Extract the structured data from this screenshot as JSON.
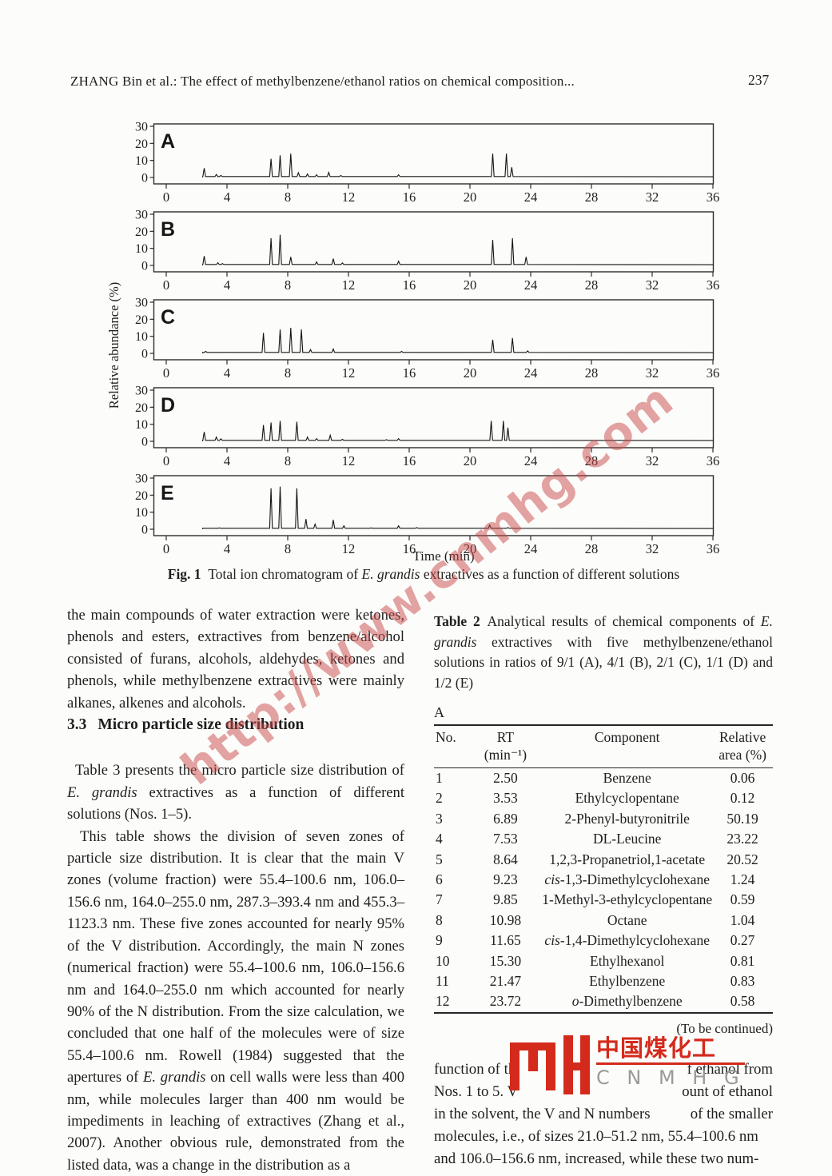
{
  "header": {
    "running_title": "ZHANG Bin et al.: The effect of methylbenzene/ethanol ratios on chemical composition...",
    "page_number": "237"
  },
  "chart_data": {
    "type": "line",
    "subtype": "total ion chromatogram, 5 stacked panels",
    "xlabel": "Time (min)",
    "ylabel": "Relative abundance (%)",
    "xlim": [
      0,
      36
    ],
    "ylim": [
      0,
      30
    ],
    "x_ticks": [
      0,
      4,
      8,
      12,
      16,
      20,
      24,
      28,
      32,
      36
    ],
    "y_ticks": [
      0,
      10,
      20,
      30
    ],
    "grid": false,
    "panels": [
      {
        "label": "A",
        "peaks": [
          [
            2.5,
            5.5
          ],
          [
            3.3,
            1.8
          ],
          [
            3.6,
            1.2
          ],
          [
            6.9,
            11
          ],
          [
            7.5,
            13
          ],
          [
            8.2,
            14
          ],
          [
            8.7,
            2.8
          ],
          [
            9.3,
            2
          ],
          [
            9.9,
            1.6
          ],
          [
            10.7,
            3
          ],
          [
            11.5,
            1.2
          ],
          [
            15.3,
            1.6
          ],
          [
            21.5,
            14
          ],
          [
            22.4,
            14
          ],
          [
            22.75,
            6
          ]
        ]
      },
      {
        "label": "B",
        "peaks": [
          [
            2.5,
            5.5
          ],
          [
            3.4,
            1.6
          ],
          [
            3.7,
            1.1
          ],
          [
            6.9,
            16
          ],
          [
            7.5,
            18
          ],
          [
            8.2,
            5
          ],
          [
            9.9,
            2
          ],
          [
            11.0,
            4
          ],
          [
            11.6,
            1.5
          ],
          [
            15.3,
            2.5
          ],
          [
            21.5,
            15
          ],
          [
            22.8,
            16
          ],
          [
            23.7,
            5
          ]
        ]
      },
      {
        "label": "C",
        "peaks": [
          [
            2.6,
            1.2
          ],
          [
            6.4,
            12
          ],
          [
            7.5,
            14
          ],
          [
            8.2,
            15
          ],
          [
            8.9,
            14
          ],
          [
            9.5,
            2.2
          ],
          [
            11.0,
            2.6
          ],
          [
            15.5,
            1.2
          ],
          [
            21.5,
            8
          ],
          [
            22.8,
            9
          ],
          [
            23.8,
            1.5
          ]
        ]
      },
      {
        "label": "D",
        "peaks": [
          [
            2.5,
            5.5
          ],
          [
            3.3,
            2.5
          ],
          [
            3.6,
            1.5
          ],
          [
            6.4,
            9.5
          ],
          [
            6.9,
            11
          ],
          [
            7.5,
            12
          ],
          [
            8.6,
            11.5
          ],
          [
            9.3,
            2.5
          ],
          [
            9.9,
            1.6
          ],
          [
            10.8,
            3.5
          ],
          [
            11.6,
            1.2
          ],
          [
            14.5,
            1
          ],
          [
            15.3,
            1.6
          ],
          [
            21.4,
            12
          ],
          [
            22.2,
            12
          ],
          [
            22.5,
            8
          ]
        ]
      },
      {
        "label": "E",
        "peaks": [
          [
            3.5,
            0.8
          ],
          [
            6.9,
            24
          ],
          [
            7.5,
            25
          ],
          [
            8.6,
            24
          ],
          [
            9.2,
            6
          ],
          [
            9.8,
            3
          ],
          [
            11.0,
            5.5
          ],
          [
            11.7,
            2
          ],
          [
            13.5,
            0.8
          ],
          [
            15.3,
            2
          ],
          [
            16.5,
            1
          ],
          [
            21.3,
            2.5
          ],
          [
            22.5,
            1
          ]
        ]
      }
    ]
  },
  "figure_caption_parts": [
    {
      "t": "Fig. 1",
      "b": true
    },
    {
      "t": " Total ion chromatogram of "
    },
    {
      "t": "E. grandis",
      "i": true
    },
    {
      "t": " extractives as a function of different solutions"
    }
  ],
  "left_column": {
    "p1": "the main compounds of water extraction were ketones, phenols and esters, extractives from benzene/alcohol consisted of furans, alcohols, aldehydes, ketones and phenols, while methylbenzene extractives were mainly alkanes, alkenes and alcohols.",
    "heading_num": "3.3",
    "heading_text": "Micro particle size distribution",
    "p2_parts": [
      {
        "t": "Table 3 presents the micro particle size distribution of "
      },
      {
        "t": "E. grandis",
        "i": true
      },
      {
        "t": " extractives as a function of different solutions (Nos. 1–5)."
      }
    ],
    "p3_parts": [
      {
        "t": "This table shows the division of seven zones of particle size distribution. It is clear that the main V zones (volume fraction) were 55.4–100.6 nm, 106.0–156.6 nm, 164.0–255.0 nm, 287.3–393.4 nm and 455.3–1123.3 nm. These five zones accounted for nearly 95% of the V distribution. Accordingly, the main N zones (numerical fraction) were 55.4–100.6 nm, 106.0–156.6 nm and 164.0–255.0 nm which accounted for nearly 90% of the N distribution. From the size calculation, we concluded that one half of the molecules were of size 55.4–100.6 nm. Rowell (1984) suggested that the apertures of "
      },
      {
        "t": "E. grandis",
        "i": true
      },
      {
        "t": " on cell walls were less than 400 nm, while molecules larger than 400 nm would be impediments in leaching of extractives (Zhang et al., 2007). Another obvious rule, demonstrated from the listed data, was a change in the distribution as a"
      }
    ]
  },
  "table2": {
    "caption_parts": [
      {
        "t": "Table 2",
        "b": true
      },
      {
        "t": " Analytical results of chemical components of "
      },
      {
        "t": "E. grandis",
        "i": true
      },
      {
        "t": " extractives with five methylbenzene/ethanol solutions in ratios of 9/1 (A), 4/1 (B), 2/1 (C), 1/1 (D) and 1/2 (E)"
      }
    ],
    "section_label": "A",
    "headers": [
      [
        "No.",
        ""
      ],
      [
        "RT",
        "(min⁻¹)"
      ],
      [
        "Component",
        ""
      ],
      [
        "Relative",
        "area (%)"
      ]
    ],
    "rows": [
      [
        "1",
        "2.50",
        [
          "",
          "Benzene"
        ],
        "0.06"
      ],
      [
        "2",
        "3.53",
        [
          "",
          "Ethylcyclopentane"
        ],
        "0.12"
      ],
      [
        "3",
        "6.89",
        [
          "",
          "2-Phenyl-butyronitrile"
        ],
        "50.19"
      ],
      [
        "4",
        "7.53",
        [
          "",
          "DL-Leucine"
        ],
        "23.22"
      ],
      [
        "5",
        "8.64",
        [
          "",
          "1,2,3-Propanetriol,1-acetate"
        ],
        "20.52"
      ],
      [
        "6",
        "9.23",
        [
          "cis-",
          "1,3-Dimethylcyclohexane"
        ],
        "1.24"
      ],
      [
        "7",
        "9.85",
        [
          "",
          "1-Methyl-3-ethylcyclopentane"
        ],
        "0.59"
      ],
      [
        "8",
        "10.98",
        [
          "",
          "Octane"
        ],
        "1.04"
      ],
      [
        "9",
        "11.65",
        [
          "cis-",
          "1,4-Dimethylcyclohexane"
        ],
        "0.27"
      ],
      [
        "10",
        "15.30",
        [
          "",
          "Ethylhexanol"
        ],
        "0.81"
      ],
      [
        "11",
        "21.47",
        [
          "",
          "Ethylbenzene"
        ],
        "0.83"
      ],
      [
        "12",
        "23.72",
        [
          "o-",
          "Dimethylbenzene"
        ],
        "0.58"
      ]
    ],
    "continued_note": "(To be continued)"
  },
  "bottom_paragraph": {
    "lines": [
      {
        "l": "function of th",
        "r": "f ethanol from"
      },
      {
        "l": "Nos. 1 to 5. V",
        "r": "ount of ethanol"
      },
      {
        "l": "in the solvent, the V and N numbers",
        "r": "of the smaller"
      },
      {
        "l": "molecules, i.e., of sizes 21.0–51.2 nm, 55.4–100.6 nm",
        "r": ""
      },
      {
        "l": "and 106.0–156.6 nm, increased, while these two num-",
        "r": ""
      }
    ]
  },
  "watermark": {
    "text": "http://www.cnmhg.com",
    "color": "#c74747"
  },
  "logo": {
    "cn_text": "中国煤化工",
    "latin_text": "C N M H G",
    "red": "#d42a1c",
    "gray": "#9a9a9a"
  }
}
